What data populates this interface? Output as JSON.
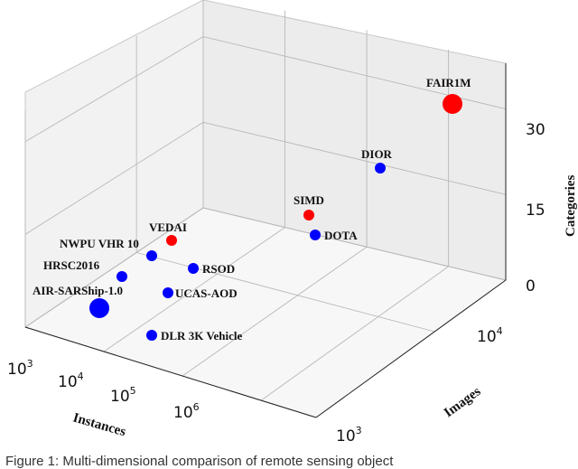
{
  "chart_data": {
    "type": "scatter3d",
    "title": "",
    "axes": {
      "instances": {
        "label": "Instances",
        "ticks": [
          {
            "base": "10",
            "exp": "3"
          },
          {
            "base": "10",
            "exp": "4"
          },
          {
            "base": "10",
            "exp": "5"
          },
          {
            "base": "10",
            "exp": "6"
          }
        ],
        "scale": "log",
        "range": [
          3,
          6.7
        ]
      },
      "images": {
        "label": "Images",
        "ticks": [
          {
            "base": "10",
            "exp": "3"
          },
          {
            "base": "10",
            "exp": "4"
          }
        ],
        "scale": "log",
        "range": [
          3,
          4.6
        ]
      },
      "categories": {
        "label": "Categories",
        "ticks": [
          "0",
          "15",
          "30"
        ],
        "values": [
          0,
          15,
          30
        ],
        "range": [
          0,
          38
        ]
      }
    },
    "colors": {
      "red": "#ff0000",
      "blue": "#0000ff"
    },
    "points": [
      {
        "name": "FAIR1M",
        "color": "red",
        "size": "large"
      },
      {
        "name": "DIOR",
        "color": "blue",
        "size": "small"
      },
      {
        "name": "SIMD",
        "color": "red",
        "size": "small"
      },
      {
        "name": "DOTA",
        "color": "blue",
        "size": "small"
      },
      {
        "name": "VEDAI",
        "color": "red",
        "size": "small"
      },
      {
        "name": "NWPU VHR 10",
        "color": "blue",
        "size": "small"
      },
      {
        "name": "HRSC2016",
        "color": "blue",
        "size": "small"
      },
      {
        "name": "RSOD",
        "color": "blue",
        "size": "small"
      },
      {
        "name": "AIR-SARShip-1.0",
        "color": "blue",
        "size": "large"
      },
      {
        "name": "UCAS-AOD",
        "color": "blue",
        "size": "small"
      },
      {
        "name": "DLR 3K Vehicle",
        "color": "blue",
        "size": "small"
      }
    ]
  },
  "caption": "Figure 1: Multi-dimensional comparison of remote sensing object"
}
